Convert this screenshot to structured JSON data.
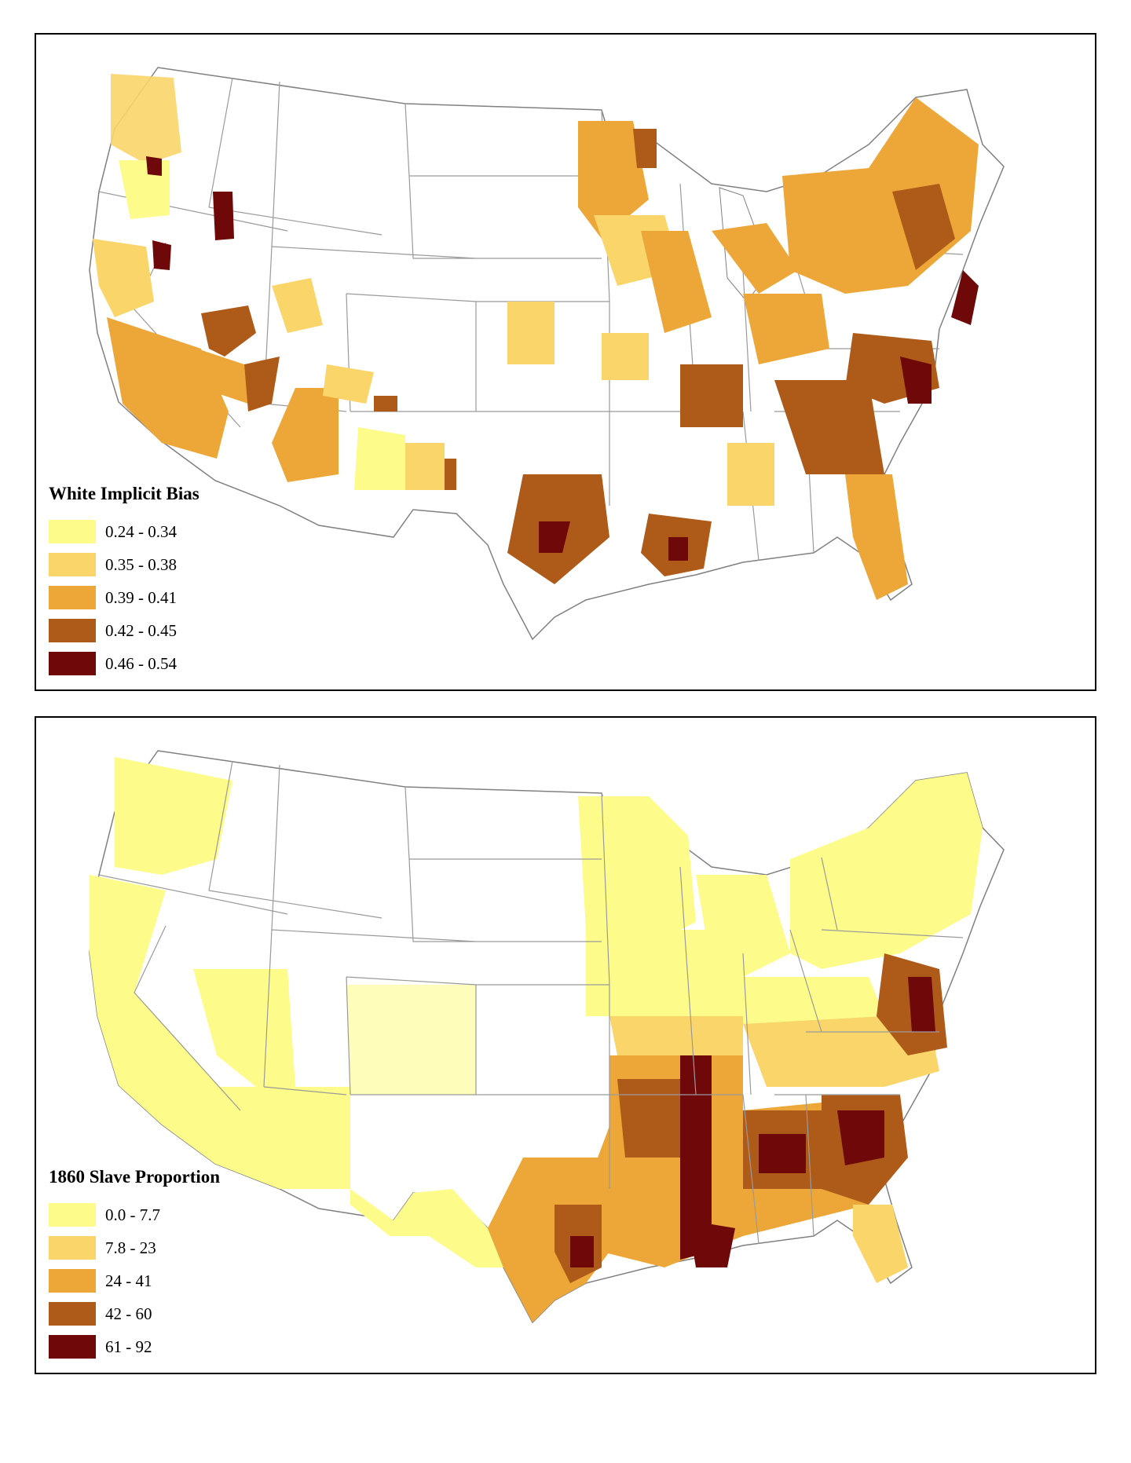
{
  "maps": [
    {
      "legend_title": "White Implicit Bias",
      "classes": [
        {
          "label": "0.24 - 0.34",
          "color": "#fdfc8b"
        },
        {
          "label": "0.35 - 0.38",
          "color": "#f9d56a"
        },
        {
          "label": "0.39 - 0.41",
          "color": "#eda738"
        },
        {
          "label": "0.42 - 0.45",
          "color": "#ae5a19"
        },
        {
          "label": "0.46 - 0.54",
          "color": "#6f0808"
        }
      ]
    },
    {
      "legend_title": "1860 Slave Proportion",
      "classes": [
        {
          "label": "0.0 - 7.7",
          "color": "#fdfc8b"
        },
        {
          "label": "7.8 - 23",
          "color": "#f9d56a"
        },
        {
          "label": "24 - 41",
          "color": "#eda738"
        },
        {
          "label": "42 - 60",
          "color": "#ae5a19"
        },
        {
          "label": "61 - 92",
          "color": "#6f0808"
        }
      ]
    }
  ]
}
